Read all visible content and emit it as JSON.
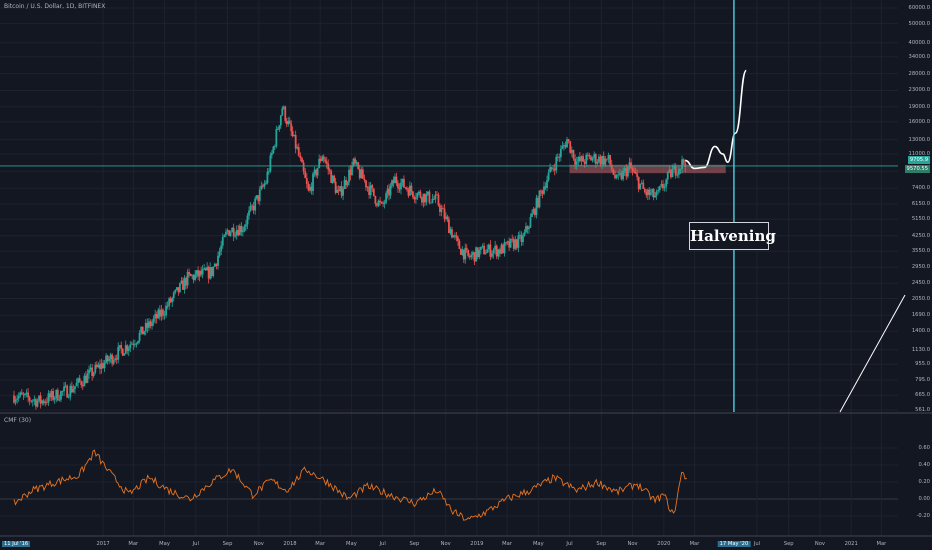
{
  "header": {
    "title": "Bitcoin / U.S. Dollar, 1D, BITFINEX"
  },
  "indicator": {
    "title": "CMF (30)"
  },
  "annotation": {
    "label": "Halvening"
  },
  "price_axis": {
    "ticks": [
      "60000.0",
      "50000.0",
      "40000.0",
      "34000.0",
      "28000.0",
      "23000.0",
      "19000.0",
      "16000.0",
      "13000.0",
      "11000.0",
      "9000.0",
      "7400.0",
      "6150.0",
      "5150.0",
      "4250.0",
      "3550.0",
      "2950.0",
      "2450.0",
      "2050.0",
      "1690.0",
      "1400.0",
      "1130.0",
      "955.0",
      "795.0",
      "665.0",
      "561.0"
    ],
    "current_price": "9705.9",
    "level_price": "9570.55"
  },
  "cmf_axis": {
    "ticks": [
      "0.60",
      "0.40",
      "0.20",
      "0.00",
      "-0.20"
    ]
  },
  "time_axis": {
    "ticks": [
      "11 Jul '16",
      "2017",
      "Mar",
      "May",
      "Jul",
      "Sep",
      "Nov",
      "2018",
      "Mar",
      "May",
      "Jul",
      "Sep",
      "Nov",
      "2019",
      "Mar",
      "May",
      "Jul",
      "Sep",
      "Nov",
      "2020",
      "Mar",
      "17 May '20",
      "Jul",
      "Sep",
      "Nov",
      "2021",
      "Mar"
    ]
  },
  "colors": {
    "background": "#131722",
    "up_candle": "#26a69a",
    "down_candle": "#ef5350",
    "cmf_line": "#e8731e",
    "cursor_line": "#4dd0e1",
    "resistance_box": "#e57373",
    "level_line": "#26a69a"
  },
  "chart_data": [
    {
      "type": "line",
      "title": "Bitcoin / U.S. Dollar, 1D, BITFINEX",
      "scale": "log",
      "ylim": [
        561,
        60000
      ],
      "xlim": [
        "2016-07-11",
        "2021-04-15"
      ],
      "x": [
        "2016-07-11",
        "2016-09-01",
        "2016-11-01",
        "2017-01-01",
        "2017-03-01",
        "2017-05-01",
        "2017-06-15",
        "2017-08-01",
        "2017-09-01",
        "2017-10-01",
        "2017-11-15",
        "2017-12-17",
        "2018-01-15",
        "2018-02-06",
        "2018-03-05",
        "2018-04-06",
        "2018-05-05",
        "2018-06-29",
        "2018-07-25",
        "2018-09-01",
        "2018-10-15",
        "2018-11-25",
        "2018-12-15",
        "2019-01-15",
        "2019-02-15",
        "2019-04-01",
        "2019-05-15",
        "2019-06-26",
        "2019-07-15",
        "2019-08-15",
        "2019-09-15",
        "2019-10-01",
        "2019-10-26",
        "2019-11-25",
        "2019-12-18",
        "2020-01-15",
        "2020-02-12"
      ],
      "y": [
        665,
        620,
        720,
        960,
        1250,
        1800,
        2600,
        2800,
        4500,
        4700,
        8000,
        19000,
        11500,
        7000,
        11000,
        6800,
        9800,
        5900,
        8200,
        7000,
        6400,
        3800,
        3300,
        3600,
        3600,
        4100,
        8000,
        13000,
        10000,
        10500,
        10200,
        8000,
        9500,
        7000,
        6700,
        8800,
        10200
      ],
      "series": [
        {
          "name": "Bitcoin / U.S. Dollar"
        }
      ],
      "projection": {
        "x": [
          "2020-02-12",
          "2020-03-01",
          "2020-03-20",
          "2020-04-10",
          "2020-04-25",
          "2020-05-05",
          "2020-05-20",
          "2020-06-10"
        ],
        "y": [
          10200,
          9300,
          9400,
          12000,
          11000,
          10000,
          14000,
          29000
        ]
      },
      "resistance_zone": {
        "x": [
          "2019-07-01",
          "2020-05-01"
        ],
        "y": [
          8800,
          9700
        ]
      },
      "horizontal_line": 9570.55,
      "vertical_marker": "2020-05-17",
      "annotation": "Halvening"
    },
    {
      "type": "line",
      "title": "CMF (30)",
      "ylim": [
        -0.3,
        0.65
      ],
      "x": [
        "2016-07-11",
        "2016-08-15",
        "2016-10-01",
        "2016-11-15",
        "2016-12-15",
        "2017-01-15",
        "2017-02-20",
        "2017-04-01",
        "2017-05-10",
        "2017-06-20",
        "2017-08-01",
        "2017-09-10",
        "2017-10-20",
        "2017-11-25",
        "2017-12-25",
        "2018-02-01",
        "2018-03-15",
        "2018-04-25",
        "2018-06-01",
        "2018-07-15",
        "2018-09-01",
        "2018-10-15",
        "2018-11-15",
        "2018-12-15",
        "2019-01-20",
        "2019-03-01",
        "2019-04-15",
        "2019-06-01",
        "2019-07-15",
        "2019-08-25",
        "2019-10-01",
        "2019-11-10",
        "2019-12-15",
        "2020-01-01",
        "2020-01-20",
        "2020-02-05",
        "2020-02-15"
      ],
      "y": [
        -0.05,
        0.1,
        0.2,
        0.28,
        0.55,
        0.3,
        0.05,
        0.25,
        0.1,
        0.0,
        0.2,
        0.35,
        0.05,
        0.22,
        0.1,
        0.35,
        0.2,
        0.0,
        0.15,
        0.05,
        -0.05,
        0.1,
        -0.15,
        -0.25,
        -0.15,
        0.0,
        0.1,
        0.25,
        0.1,
        0.2,
        0.08,
        0.18,
        -0.02,
        0.05,
        -0.2,
        0.3,
        0.25
      ],
      "series": [
        {
          "name": "CMF (30)"
        }
      ],
      "ticks": [
        0.6,
        0.4,
        0.2,
        0.0,
        -0.2
      ]
    }
  ]
}
